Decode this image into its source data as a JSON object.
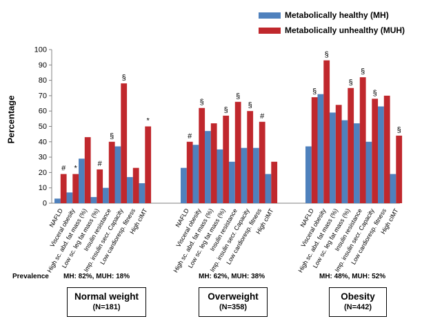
{
  "chart_data": {
    "type": "bar",
    "ylabel": "Percentage",
    "ylim": [
      0,
      100
    ],
    "yticks": [
      0,
      10,
      20,
      30,
      40,
      50,
      60,
      70,
      80,
      90,
      100
    ],
    "categories": [
      "NAFLD",
      "Visceral obesity",
      "High sc. abd. fat mass (%)",
      "Low sc. leg fat mass (%)",
      "Insulin resistance",
      "Imp. insulin secr. Capacity",
      "Low cardioresp. fitness",
      "High cIMT"
    ],
    "legend": {
      "position": "top-right",
      "items": [
        {
          "name": "Metabolically healthy (MH)",
          "color": "#4F81BD"
        },
        {
          "name": "Metabolically unhealthy (MUH)",
          "color": "#C0282D"
        }
      ]
    },
    "groups": [
      {
        "name": "Normal weight",
        "n": "(N=181)",
        "prevalence": "MH: 82%, MUH: 18%",
        "mh": [
          3,
          7,
          29,
          4,
          10,
          37,
          17,
          13
        ],
        "muh": [
          19,
          19,
          43,
          22,
          40,
          78,
          23,
          50
        ],
        "annotations": [
          "#",
          "*",
          "",
          "#",
          "§",
          "§",
          "",
          "*"
        ]
      },
      {
        "name": "Overweight",
        "n": "(N=358)",
        "prevalence": "MH: 62%, MUH: 38%",
        "mh": [
          23,
          38,
          47,
          35,
          27,
          36,
          36,
          19
        ],
        "muh": [
          40,
          62,
          52,
          57,
          66,
          60,
          53,
          27
        ],
        "annotations": [
          "#",
          "§",
          "",
          "§",
          "§",
          "§",
          "#",
          ""
        ]
      },
      {
        "name": "Obesity",
        "n": "(N=442)",
        "prevalence": "MH: 48%, MUH: 52%",
        "mh": [
          37,
          71,
          59,
          54,
          52,
          40,
          63,
          19
        ],
        "muh": [
          69,
          93,
          64,
          75,
          82,
          68,
          70,
          44
        ],
        "annotations": [
          "§",
          "§",
          "",
          "§",
          "§",
          "§",
          "",
          "§"
        ]
      }
    ]
  },
  "prevalence_label": "Prevalence"
}
